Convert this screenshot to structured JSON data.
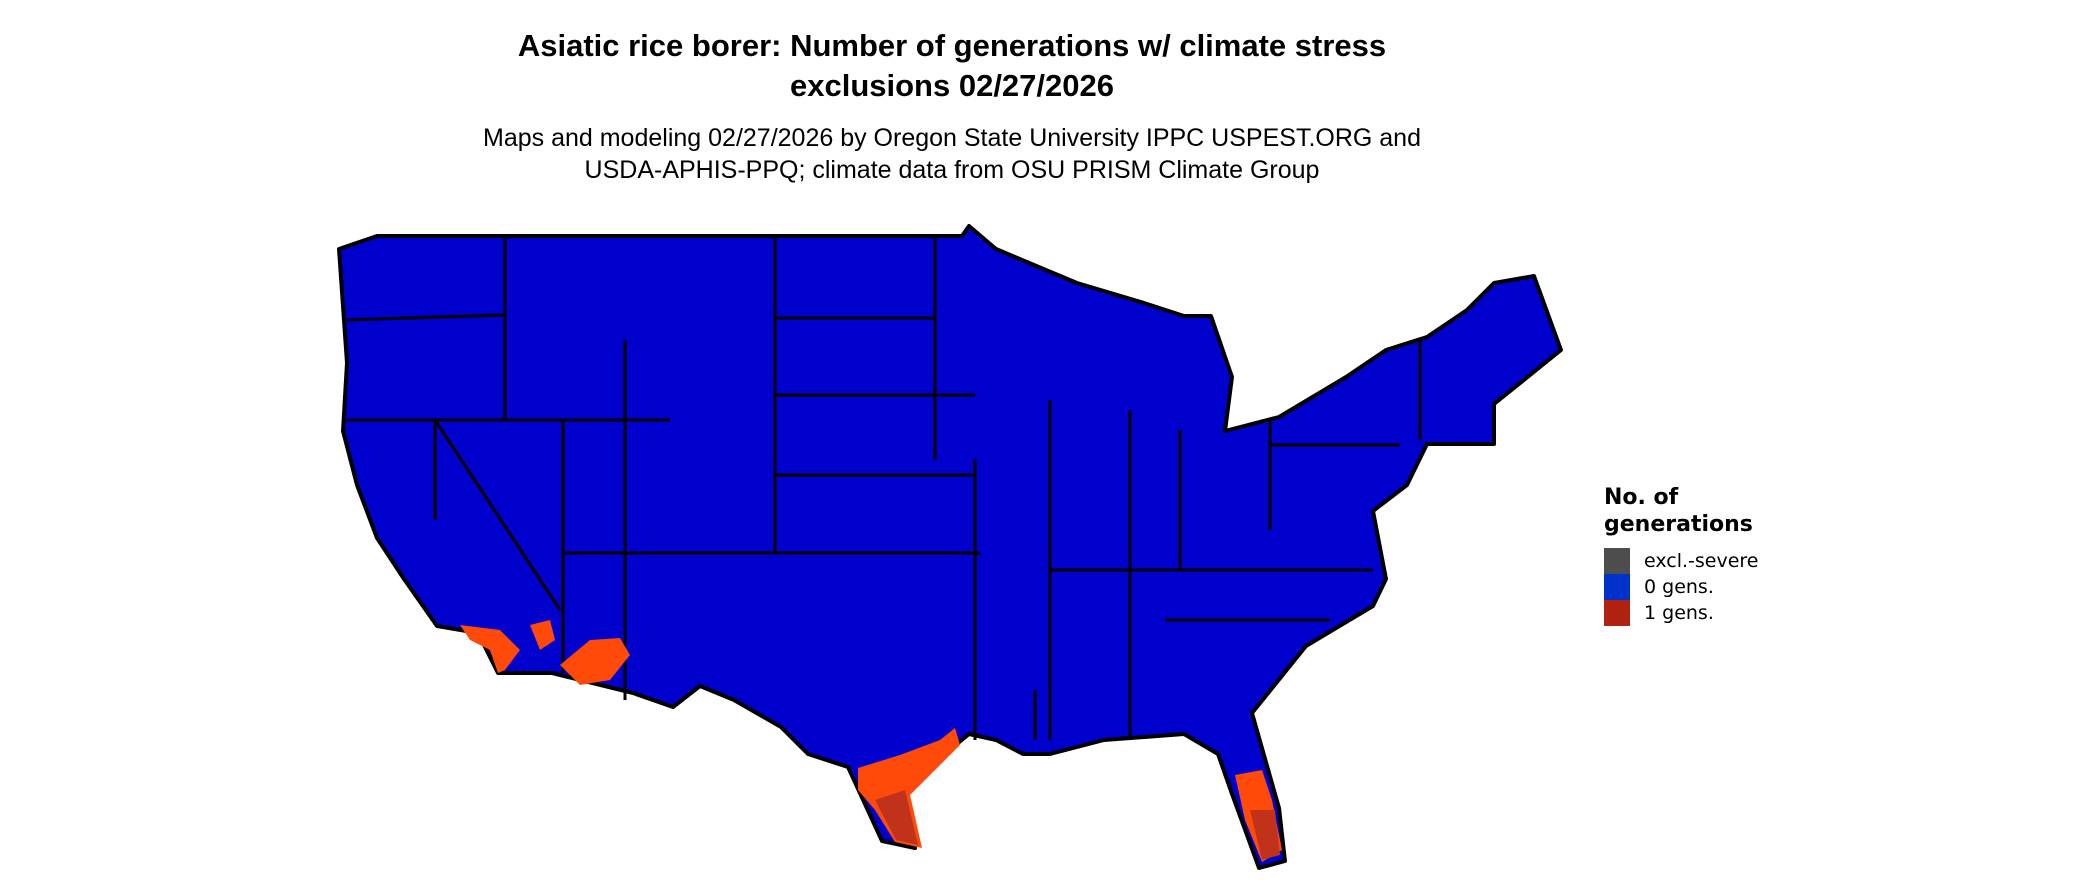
{
  "title": {
    "line1": "Asiatic rice borer: Number of generations w/ climate stress",
    "line2": "exclusions 02/27/2026"
  },
  "subtitle": {
    "line1": "Maps and modeling 02/27/2026 by Oregon State University IPPC USPEST.ORG and",
    "line2": "USDA-APHIS-PPQ; climate data from OSU PRISM Climate Group"
  },
  "map": {
    "region": "Contiguous United States",
    "colors": {
      "base": "#0000cc",
      "one_gen": "#ff4a0a",
      "one_gen_dark": "#c0331a",
      "border": "#000000"
    }
  },
  "legend": {
    "title_line1": "No. of",
    "title_line2": "generations",
    "items": [
      {
        "label": "excl.-severe",
        "color": "#4d4d4d"
      },
      {
        "label": "0 gens.",
        "color": "#0033cc"
      },
      {
        "label": "1 gens.",
        "color": "#b22211"
      }
    ]
  }
}
